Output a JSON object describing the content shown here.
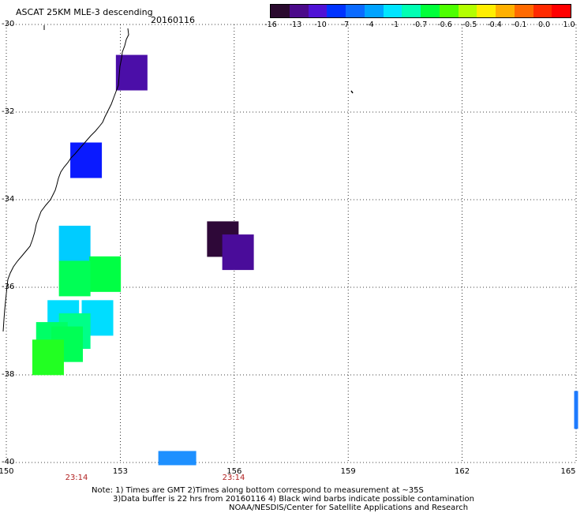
{
  "title": "ASCAT 25KM MLE-3 descending",
  "date": "20160116",
  "colorbar": {
    "labels": [
      "-16",
      "-13",
      "-10",
      "-7",
      "-4",
      "-1",
      "-0.7",
      "-0.6",
      "-0.5",
      "-0.4",
      "-0.1",
      "0.0",
      "1.0"
    ],
    "colors": [
      "#2a0a2e",
      "#4b0a8a",
      "#4f12d6",
      "#0033ff",
      "#0b6bff",
      "#00a3ff",
      "#00e5ff",
      "#00ffb3",
      "#00ff3a",
      "#4dff00",
      "#b3ff00",
      "#ffee00",
      "#ffb000",
      "#ff6a00",
      "#ff2a00",
      "#ff0000"
    ]
  },
  "axes": {
    "x_ticks": [
      "150",
      "153",
      "156",
      "159",
      "162",
      "165"
    ],
    "y_ticks": [
      "-30",
      "-32",
      "-34",
      "-36",
      "-38",
      "-40"
    ]
  },
  "times": [
    "23:14",
    "23:14"
  ],
  "notes": [
    "Note: 1) Times are GMT 2)Times along bottom correspond to measurement at ~35S",
    "3)Data buffer is 22 hrs from 20160116 4) Black wind barbs indicate possible contamination",
    "NOAA/NESDIS/Center for Satellite Applications and Research"
  ],
  "map_data": {
    "lon_range": [
      150,
      165
    ],
    "lat_range": [
      -40,
      -30
    ],
    "cells": [
      {
        "lon": 153.3,
        "lat": -31.1,
        "color": "#4b0ea8"
      },
      {
        "lon": 152.1,
        "lat": -33.1,
        "color": "#0a1aff"
      },
      {
        "lon": 151.8,
        "lat": -35.0,
        "color": "#00ccff"
      },
      {
        "lon": 152.6,
        "lat": -35.7,
        "color": "#00ff44"
      },
      {
        "lon": 151.8,
        "lat": -35.8,
        "color": "#00ff55"
      },
      {
        "lon": 155.7,
        "lat": -34.9,
        "color": "#2e0838"
      },
      {
        "lon": 156.1,
        "lat": -35.2,
        "color": "#4a0c9a"
      },
      {
        "lon": 151.5,
        "lat": -36.7,
        "color": "#00ddff"
      },
      {
        "lon": 152.4,
        "lat": -36.7,
        "color": "#00ddff"
      },
      {
        "lon": 151.8,
        "lat": -37.0,
        "color": "#00ff88"
      },
      {
        "lon": 151.2,
        "lat": -37.2,
        "color": "#00ff66"
      },
      {
        "lon": 151.6,
        "lat": -37.3,
        "color": "#00ff55"
      },
      {
        "lon": 151.1,
        "lat": -37.6,
        "color": "#22ff22"
      },
      {
        "lon": 154.5,
        "lat": -39.9,
        "color": "#1e90ff"
      },
      {
        "lon": 165.0,
        "lat": -38.8,
        "color": "#1e7bff"
      }
    ]
  }
}
